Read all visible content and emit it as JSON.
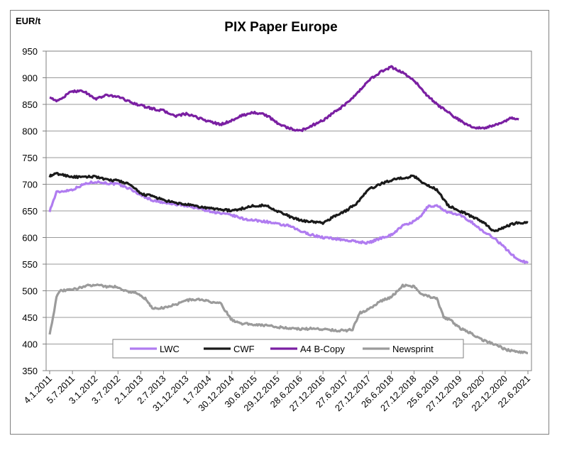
{
  "chart_data": {
    "type": "line",
    "title": "PIX Paper Europe",
    "ylabel": "EUR/t",
    "xlabel": "",
    "ylim": [
      350,
      950
    ],
    "yticks": [
      350,
      400,
      450,
      500,
      550,
      600,
      650,
      700,
      750,
      800,
      850,
      900,
      950
    ],
    "x_index_range": [
      0,
      21
    ],
    "categories": [
      "4.1.2011",
      "5.7.2011",
      "3.1.2012",
      "3.7.2012",
      "2.1.2013",
      "2.7.2013",
      "31.12.2013",
      "1.7.2014",
      "30.12.2014",
      "30.6.2015",
      "29.12.2015",
      "28.6.2016",
      "27.12.2016",
      "27.6.2017",
      "27.12.2017",
      "26.6.2018",
      "27.12.2018",
      "25.6.2019",
      "27.12.2019",
      "23.6.2020",
      "22.12.2020",
      "22.6.2021"
    ],
    "legend_position": "bottom-center",
    "grid": true,
    "series": [
      {
        "name": "LWC",
        "color": "#b07cf0",
        "points": [
          [
            0,
            650
          ],
          [
            0.3,
            685
          ],
          [
            1,
            690
          ],
          [
            1.5,
            700
          ],
          [
            2,
            705
          ],
          [
            2.5,
            702
          ],
          [
            3,
            700
          ],
          [
            3.5,
            692
          ],
          [
            4,
            680
          ],
          [
            4.5,
            670
          ],
          [
            5,
            665
          ],
          [
            5.5,
            662
          ],
          [
            6,
            660
          ],
          [
            6.5,
            655
          ],
          [
            7,
            650
          ],
          [
            7.5,
            645
          ],
          [
            8,
            642
          ],
          [
            8.5,
            635
          ],
          [
            9,
            632
          ],
          [
            9.5,
            630
          ],
          [
            10,
            625
          ],
          [
            10.5,
            622
          ],
          [
            11,
            612
          ],
          [
            11.5,
            605
          ],
          [
            12,
            600
          ],
          [
            12.5,
            598
          ],
          [
            13,
            595
          ],
          [
            13.5,
            592
          ],
          [
            14,
            590
          ],
          [
            14.3,
            595
          ],
          [
            14.6,
            600
          ],
          [
            15,
            605
          ],
          [
            15.5,
            622
          ],
          [
            16,
            630
          ],
          [
            16.3,
            640
          ],
          [
            16.6,
            658
          ],
          [
            17,
            660
          ],
          [
            17.5,
            647
          ],
          [
            18,
            642
          ],
          [
            18.5,
            630
          ],
          [
            19,
            612
          ],
          [
            19.5,
            600
          ],
          [
            20,
            580
          ],
          [
            20.5,
            560
          ],
          [
            21,
            552
          ]
        ]
      },
      {
        "name": "CWF",
        "color": "#1a1a1a",
        "points": [
          [
            0,
            715
          ],
          [
            0.3,
            720
          ],
          [
            1,
            714
          ],
          [
            1.5,
            713
          ],
          [
            2,
            715
          ],
          [
            2.5,
            708
          ],
          [
            3,
            707
          ],
          [
            3.5,
            700
          ],
          [
            4,
            682
          ],
          [
            4.5,
            678
          ],
          [
            5,
            670
          ],
          [
            5.5,
            665
          ],
          [
            6,
            662
          ],
          [
            6.5,
            658
          ],
          [
            7,
            655
          ],
          [
            7.5,
            653
          ],
          [
            8,
            650
          ],
          [
            8.5,
            655
          ],
          [
            9,
            660
          ],
          [
            9.5,
            660
          ],
          [
            10,
            650
          ],
          [
            10.5,
            640
          ],
          [
            11,
            632
          ],
          [
            11.5,
            630
          ],
          [
            12,
            627
          ],
          [
            12.5,
            640
          ],
          [
            13,
            650
          ],
          [
            13.5,
            665
          ],
          [
            14,
            690
          ],
          [
            14.5,
            700
          ],
          [
            15,
            708
          ],
          [
            15.5,
            712
          ],
          [
            16,
            715
          ],
          [
            16.5,
            700
          ],
          [
            17,
            690
          ],
          [
            17.5,
            660
          ],
          [
            18,
            650
          ],
          [
            18.5,
            640
          ],
          [
            19,
            630
          ],
          [
            19.5,
            612
          ],
          [
            20,
            620
          ],
          [
            20.5,
            628
          ],
          [
            21,
            628
          ]
        ]
      },
      {
        "name": "A4 B-Copy",
        "color": "#7a1fa2",
        "points": [
          [
            0,
            865
          ],
          [
            0.3,
            855
          ],
          [
            1,
            875
          ],
          [
            1.5,
            875
          ],
          [
            2,
            860
          ],
          [
            2.5,
            867
          ],
          [
            3,
            865
          ],
          [
            3.5,
            855
          ],
          [
            4,
            848
          ],
          [
            4.5,
            842
          ],
          [
            5,
            838
          ],
          [
            5.5,
            828
          ],
          [
            6,
            832
          ],
          [
            6.5,
            825
          ],
          [
            7,
            818
          ],
          [
            7.5,
            812
          ],
          [
            8,
            820
          ],
          [
            8.5,
            830
          ],
          [
            9,
            835
          ],
          [
            9.5,
            830
          ],
          [
            10,
            815
          ],
          [
            10.5,
            805
          ],
          [
            11,
            800
          ],
          [
            11.5,
            810
          ],
          [
            12,
            820
          ],
          [
            12.5,
            835
          ],
          [
            13,
            850
          ],
          [
            13.5,
            870
          ],
          [
            14,
            895
          ],
          [
            14.5,
            910
          ],
          [
            15,
            920
          ],
          [
            15.5,
            910
          ],
          [
            16,
            895
          ],
          [
            16.5,
            870
          ],
          [
            17,
            850
          ],
          [
            17.5,
            835
          ],
          [
            18,
            820
          ],
          [
            18.5,
            808
          ],
          [
            19,
            805
          ],
          [
            19.5,
            810
          ],
          [
            20,
            818
          ],
          [
            20.3,
            825
          ],
          [
            20.6,
            822
          ]
        ]
      },
      {
        "name": "Newsprint",
        "color": "#9b9b9b",
        "points": [
          [
            0,
            420
          ],
          [
            0.15,
            450
          ],
          [
            0.3,
            490
          ],
          [
            0.5,
            500
          ],
          [
            1,
            502
          ],
          [
            1.5,
            508
          ],
          [
            2,
            512
          ],
          [
            2.5,
            508
          ],
          [
            3,
            507
          ],
          [
            3.3,
            500
          ],
          [
            3.8,
            496
          ],
          [
            4.2,
            485
          ],
          [
            4.5,
            467
          ],
          [
            5,
            468
          ],
          [
            5.5,
            474
          ],
          [
            6,
            482
          ],
          [
            6.5,
            484
          ],
          [
            7,
            480
          ],
          [
            7.5,
            476
          ],
          [
            8,
            445
          ],
          [
            8.5,
            438
          ],
          [
            9,
            437
          ],
          [
            9.5,
            435
          ],
          [
            10,
            432
          ],
          [
            10.5,
            430
          ],
          [
            11,
            428
          ],
          [
            11.5,
            429
          ],
          [
            12,
            428
          ],
          [
            12.5,
            426
          ],
          [
            13,
            425
          ],
          [
            13.3,
            428
          ],
          [
            13.6,
            458
          ],
          [
            14,
            465
          ],
          [
            14.5,
            480
          ],
          [
            15,
            488
          ],
          [
            15.5,
            510
          ],
          [
            16,
            508
          ],
          [
            16.3,
            495
          ],
          [
            16.6,
            490
          ],
          [
            17,
            485
          ],
          [
            17.3,
            450
          ],
          [
            17.6,
            445
          ],
          [
            18,
            430
          ],
          [
            18.5,
            420
          ],
          [
            19,
            408
          ],
          [
            19.5,
            400
          ],
          [
            20,
            390
          ],
          [
            20.5,
            385
          ],
          [
            21,
            383
          ]
        ]
      }
    ]
  }
}
